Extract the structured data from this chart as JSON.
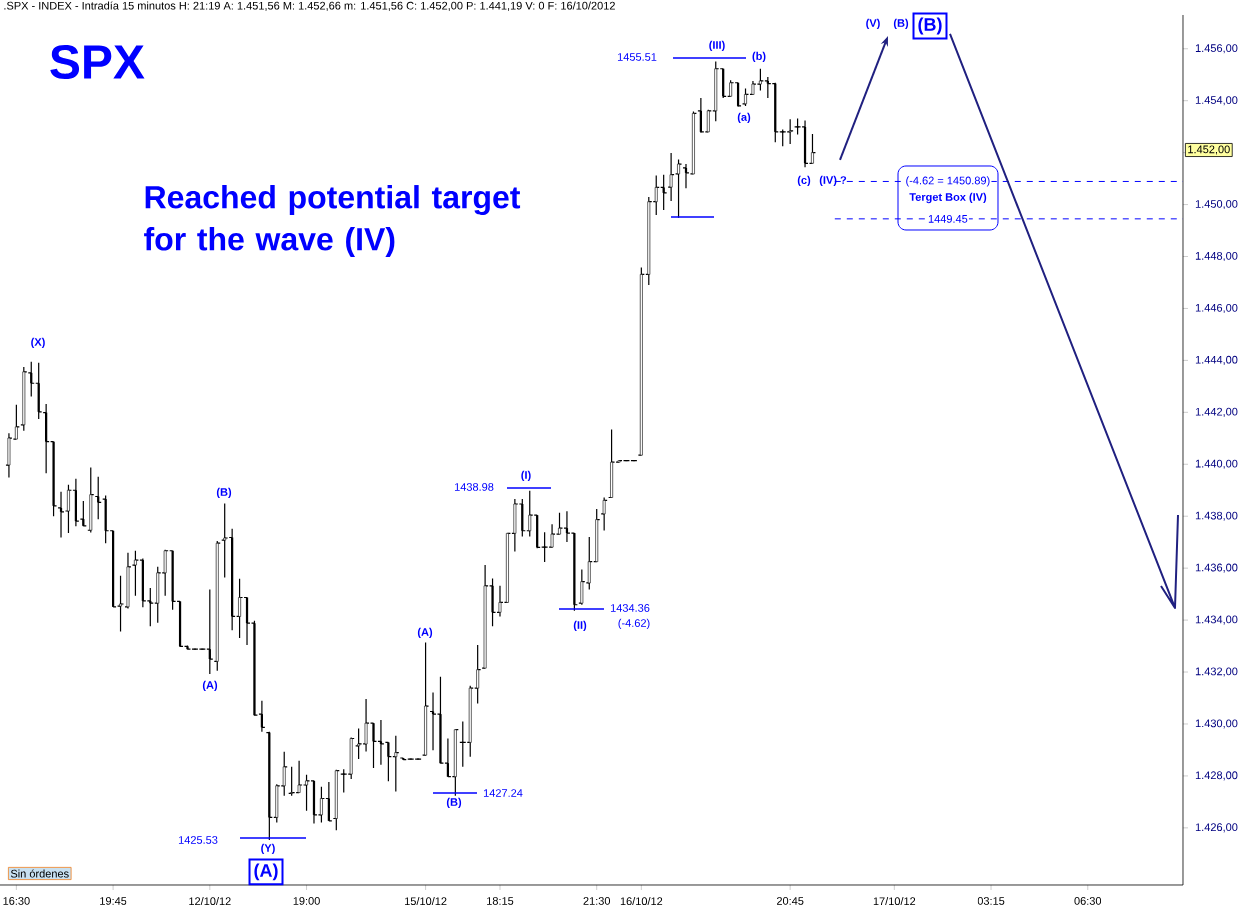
{
  "chart_data": {
    "type": "candlestick",
    "title": "SPX",
    "subtitle": "Reached potential target for the wave (IV)",
    "color": "#000000",
    "ylim": [
      1423.8,
      1457.3
    ],
    "categories": [
      null,
      "16:30",
      null,
      null,
      null,
      null,
      null,
      null,
      null,
      null,
      null,
      null,
      null,
      null,
      "19:45",
      null,
      null,
      null,
      null,
      null,
      null,
      null,
      null,
      null,
      null,
      null,
      null,
      "12/10/12",
      null,
      null,
      null,
      null,
      null,
      null,
      null,
      null,
      null,
      null,
      null,
      null,
      "19:00",
      null,
      null,
      null,
      null,
      null,
      null,
      null,
      null,
      null,
      null,
      null,
      null,
      null,
      null,
      null,
      "15/10/12",
      null,
      null,
      null,
      null,
      null,
      null,
      null,
      null,
      null,
      "18:15",
      null,
      null,
      null,
      null,
      null,
      null,
      null,
      null,
      null,
      null,
      null,
      null,
      "21:30",
      null,
      null,
      null,
      null,
      null,
      "16/10/12",
      null,
      null,
      null,
      null,
      null,
      null,
      null,
      null,
      null,
      null,
      null,
      null,
      null,
      null,
      null,
      null,
      null,
      null,
      null,
      "20:45",
      null,
      null,
      null,
      null,
      null,
      null,
      null,
      null,
      null,
      null,
      null,
      null,
      null,
      "17/10/12",
      null,
      null,
      null,
      null,
      null,
      null,
      null,
      null,
      null,
      null,
      null,
      null,
      "03:15",
      null,
      null,
      null,
      null,
      null,
      null,
      null,
      null,
      null,
      null,
      null,
      null,
      "06:30",
      null,
      null,
      null,
      null,
      null,
      null,
      null,
      null,
      null,
      null,
      null,
      null
    ],
    "yticks": [
      {
        "value": 1426,
        "label": "1.426,00"
      },
      {
        "value": 1428,
        "label": "1.428,00"
      },
      {
        "value": 1430,
        "label": "1.430,00"
      },
      {
        "value": 1432,
        "label": "1.432,00"
      },
      {
        "value": 1434,
        "label": "1.434,00"
      },
      {
        "value": 1436,
        "label": "1.436,00"
      },
      {
        "value": 1438,
        "label": "1.438,00"
      },
      {
        "value": 1440,
        "label": "1.440,00"
      },
      {
        "value": 1442,
        "label": "1.442,00"
      },
      {
        "value": 1444,
        "label": "1.444,00"
      },
      {
        "value": 1446,
        "label": "1.446,00"
      },
      {
        "value": 1448,
        "label": "1.448,00"
      },
      {
        "value": 1450,
        "label": "1.450,00"
      },
      {
        "value": 1452,
        "label": null
      },
      {
        "value": 1454,
        "label": "1.454,00"
      },
      {
        "value": 1456,
        "label": "1.456,00"
      }
    ],
    "ohlc": [
      [
        1439.97,
        1441.19,
        1439.49,
        1441.01
      ],
      [
        1440.97,
        1442.29,
        1440.97,
        1441.44
      ],
      [
        1441.52,
        1443.75,
        1441.29,
        1443.56
      ],
      [
        1443.52,
        1443.95,
        1442.61,
        1443.12
      ],
      [
        1443.12,
        1443.91,
        1441.74,
        1442.02
      ],
      [
        1441.99,
        1442.32,
        1439.65,
        1440.87
      ],
      [
        1440.87,
        1440.87,
        1438.0,
        1438.4
      ],
      [
        1438.32,
        1438.94,
        1437.18,
        1438.17
      ],
      [
        1438.2,
        1439.21,
        1437.35,
        1439.0
      ],
      [
        1439.0,
        1439.44,
        1437.61,
        1437.81
      ],
      [
        1437.89,
        1438.59,
        1437.61,
        1437.63
      ],
      [
        1437.46,
        1439.88,
        1437.37,
        1438.83
      ],
      [
        1438.76,
        1439.52,
        1437.88,
        1438.53
      ],
      [
        1438.66,
        1438.8,
        1436.96,
        1437.44
      ],
      [
        1437.44,
        1437.44,
        1434.51,
        1434.51
      ],
      [
        1434.54,
        1435.71,
        1433.56,
        1434.62
      ],
      [
        1434.51,
        1436.59,
        1434.45,
        1436.05
      ],
      [
        1436.12,
        1436.67,
        1434.94,
        1436.31
      ],
      [
        1436.31,
        1436.37,
        1434.49,
        1434.74
      ],
      [
        1434.74,
        1435.24,
        1433.76,
        1434.65
      ],
      [
        1434.65,
        1436.05,
        1433.9,
        1435.82
      ],
      [
        1435.82,
        1436.71,
        1434.94,
        1436.67
      ],
      [
        1436.67,
        1436.67,
        1434.4,
        1434.72
      ],
      [
        1434.72,
        1434.72,
        1432.96,
        1432.99
      ],
      [
        1432.99,
        1433.02,
        1432.87,
        1432.88
      ],
      [
        1432.88,
        1432.9,
        1432.86,
        1432.88
      ],
      [
        1432.88,
        1432.9,
        1432.86,
        1432.88
      ],
      [
        1432.88,
        1435.18,
        1431.92,
        1432.5
      ],
      [
        1432.41,
        1437.05,
        1432.05,
        1436.96
      ],
      [
        1437.08,
        1438.49,
        1435.64,
        1437.16
      ],
      [
        1437.18,
        1437.52,
        1433.61,
        1434.14
      ],
      [
        1434.14,
        1435.59,
        1433.31,
        1434.87
      ],
      [
        1434.87,
        1434.87,
        1433.04,
        1433.88
      ],
      [
        1433.88,
        1433.97,
        1430.32,
        1430.34
      ],
      [
        1430.38,
        1430.89,
        1429.7,
        1429.87
      ],
      [
        1429.67,
        1429.7,
        1425.53,
        1426.4
      ],
      [
        1426.4,
        1427.68,
        1426.21,
        1427.62
      ],
      [
        1427.62,
        1428.93,
        1427.24,
        1428.35
      ],
      [
        1427.33,
        1428.35,
        1427.24,
        1427.36
      ],
      [
        1427.36,
        1428.58,
        1427.36,
        1427.65
      ],
      [
        1427.65,
        1428.04,
        1426.66,
        1427.81
      ],
      [
        1427.81,
        1427.81,
        1426.17,
        1426.5
      ],
      [
        1426.5,
        1427.58,
        1426.21,
        1427.13
      ],
      [
        1427.13,
        1427.77,
        1426.27,
        1426.27
      ],
      [
        1426.36,
        1428.24,
        1425.91,
        1428.2
      ],
      [
        1428.07,
        1428.26,
        1427.36,
        1428.07
      ],
      [
        1428.07,
        1429.48,
        1427.88,
        1429.44
      ],
      [
        1429.16,
        1429.83,
        1428.65,
        1429.23
      ],
      [
        1429.23,
        1430.96,
        1428.94,
        1430.03
      ],
      [
        1430.03,
        1430.03,
        1428.3,
        1429.33
      ],
      [
        1429.33,
        1430.15,
        1428.43,
        1429.23
      ],
      [
        1429.29,
        1429.29,
        1427.79,
        1428.74
      ],
      [
        1428.74,
        1429.55,
        1427.4,
        1428.9
      ],
      [
        1428.69,
        1428.69,
        1428.61,
        1428.63
      ],
      [
        1428.65,
        1428.67,
        1428.63,
        1428.65
      ],
      [
        1428.65,
        1428.67,
        1428.63,
        1428.65
      ],
      [
        1428.8,
        1433.14,
        1428.78,
        1430.69
      ],
      [
        1430.48,
        1431.21,
        1428.99,
        1430.38
      ],
      [
        1430.38,
        1431.82,
        1428.48,
        1428.49
      ],
      [
        1428.49,
        1429.44,
        1427.97,
        1427.97
      ],
      [
        1427.97,
        1429.78,
        1427.24,
        1429.78
      ],
      [
        1429.29,
        1430.1,
        1428.35,
        1429.29
      ],
      [
        1429.29,
        1431.47,
        1428.74,
        1431.38
      ],
      [
        1431.38,
        1433.04,
        1430.79,
        1432.09
      ],
      [
        1432.15,
        1436.12,
        1432.15,
        1435.32
      ],
      [
        1435.32,
        1435.6,
        1433.76,
        1434.3
      ],
      [
        1434.3,
        1435.32,
        1434.14,
        1434.68
      ],
      [
        1434.68,
        1437.34,
        1434.68,
        1437.34
      ],
      [
        1437.34,
        1438.66,
        1436.64,
        1438.47
      ],
      [
        1438.47,
        1438.66,
        1437.22,
        1437.44
      ],
      [
        1437.44,
        1438.98,
        1437.22,
        1438.04
      ],
      [
        1438.04,
        1438.04,
        1436.77,
        1436.8
      ],
      [
        1436.81,
        1437.38,
        1436.24,
        1436.81
      ],
      [
        1436.81,
        1437.69,
        1436.79,
        1437.31
      ],
      [
        1437.31,
        1438.13,
        1437.31,
        1437.54
      ],
      [
        1437.54,
        1438.19,
        1437.01,
        1437.35
      ],
      [
        1437.35,
        1437.35,
        1434.36,
        1434.59
      ],
      [
        1434.65,
        1435.95,
        1434.59,
        1435.48
      ],
      [
        1435.43,
        1437.2,
        1435.18,
        1436.25
      ],
      [
        1436.25,
        1438.28,
        1436.25,
        1437.87
      ],
      [
        1438.09,
        1438.72,
        1437.45,
        1438.61
      ],
      [
        1438.72,
        1441.34,
        1438.72,
        1440.08
      ],
      [
        1440.08,
        1440.14,
        1440.08,
        1440.14
      ],
      [
        1440.14,
        1440.16,
        1440.12,
        1440.14
      ],
      [
        1440.14,
        1440.16,
        1440.12,
        1440.14
      ],
      [
        1440.35,
        1447.58,
        1440.35,
        1447.31
      ],
      [
        1447.31,
        1450.29,
        1446.9,
        1450.11
      ],
      [
        1450.11,
        1451.12,
        1449.6,
        1450.66
      ],
      [
        1450.66,
        1451.15,
        1449.79,
        1450.45
      ],
      [
        1450.67,
        1451.99,
        1450.14,
        1451.15
      ],
      [
        1451.18,
        1451.74,
        1449.49,
        1451.56
      ],
      [
        1451.41,
        1451.56,
        1450.63,
        1451.22
      ],
      [
        1451.18,
        1453.58,
        1451.18,
        1453.51
      ],
      [
        1453.61,
        1454.1,
        1452.77,
        1452.8
      ],
      [
        1452.8,
        1453.65,
        1452.8,
        1453.61
      ],
      [
        1453.61,
        1455.51,
        1453.21,
        1455.23
      ],
      [
        1455.23,
        1455.23,
        1454.1,
        1454.17
      ],
      [
        1454.17,
        1454.79,
        1454.17,
        1454.69
      ],
      [
        1454.69,
        1454.69,
        1453.77,
        1453.8
      ],
      [
        1453.88,
        1454.47,
        1453.8,
        1454.24
      ],
      [
        1454.24,
        1454.76,
        1454.24,
        1454.64
      ],
      [
        1454.64,
        1455.23,
        1454.39,
        1454.76
      ],
      [
        1454.76,
        1454.91,
        1454.1,
        1454.66
      ],
      [
        1454.66,
        1454.69,
        1452.4,
        1452.8
      ],
      [
        1452.8,
        1452.89,
        1452.25,
        1452.8
      ],
      [
        1452.8,
        1453.29,
        1452.33,
        1452.84
      ],
      [
        1452.99,
        1453.31,
        1452.7,
        1452.99
      ],
      [
        1452.99,
        1453.24,
        1451.44,
        1451.59
      ],
      [
        1451.59,
        1452.72,
        1451.59,
        1452.0
      ],
      null,
      null,
      null,
      null,
      null,
      null,
      null,
      null,
      null,
      null,
      null,
      null,
      null,
      null,
      null,
      null,
      null,
      null,
      null,
      null,
      null,
      null,
      null,
      null,
      null,
      null,
      null,
      null,
      null,
      null,
      null,
      null,
      null,
      null,
      null,
      null,
      null,
      null,
      null,
      null,
      null,
      null,
      null,
      null,
      null,
      null,
      null,
      null,
      null
    ],
    "ref_lines": [
      {
        "axis": "y",
        "value": 1450.89,
        "label": "(-4.62 = 1450.89)",
        "color": "#0000ff",
        "line_style": "dashed"
      },
      {
        "axis": "y",
        "value": 1449.45,
        "label": "1449.45",
        "color": "#0000ff",
        "line_style": "dashed"
      }
    ],
    "annotations": [
      ".SPX - INDEX - Intradía 15 minutos H: 21:19 A: 1.451,56 M: 1.452,66 m: 1.451,56 C: 1.452,00 P: 1.441,19 V: 0 F: 16/10/2012",
      "Sin órdenes",
      "(X)",
      "(B)",
      "(A)",
      "1425.53",
      "(Y)",
      "(A)",
      "(A)",
      "(B)",
      "1427.24",
      "1438.98",
      "(I)",
      "(II)",
      "1434.36",
      "(-4.62)",
      "1455.51",
      "(III)",
      "(a)",
      "(b)",
      "(c)",
      "(IV) ?",
      "(V)",
      "(B)",
      "(B)",
      "Terget Box (IV)",
      "1.452,00"
    ]
  }
}
